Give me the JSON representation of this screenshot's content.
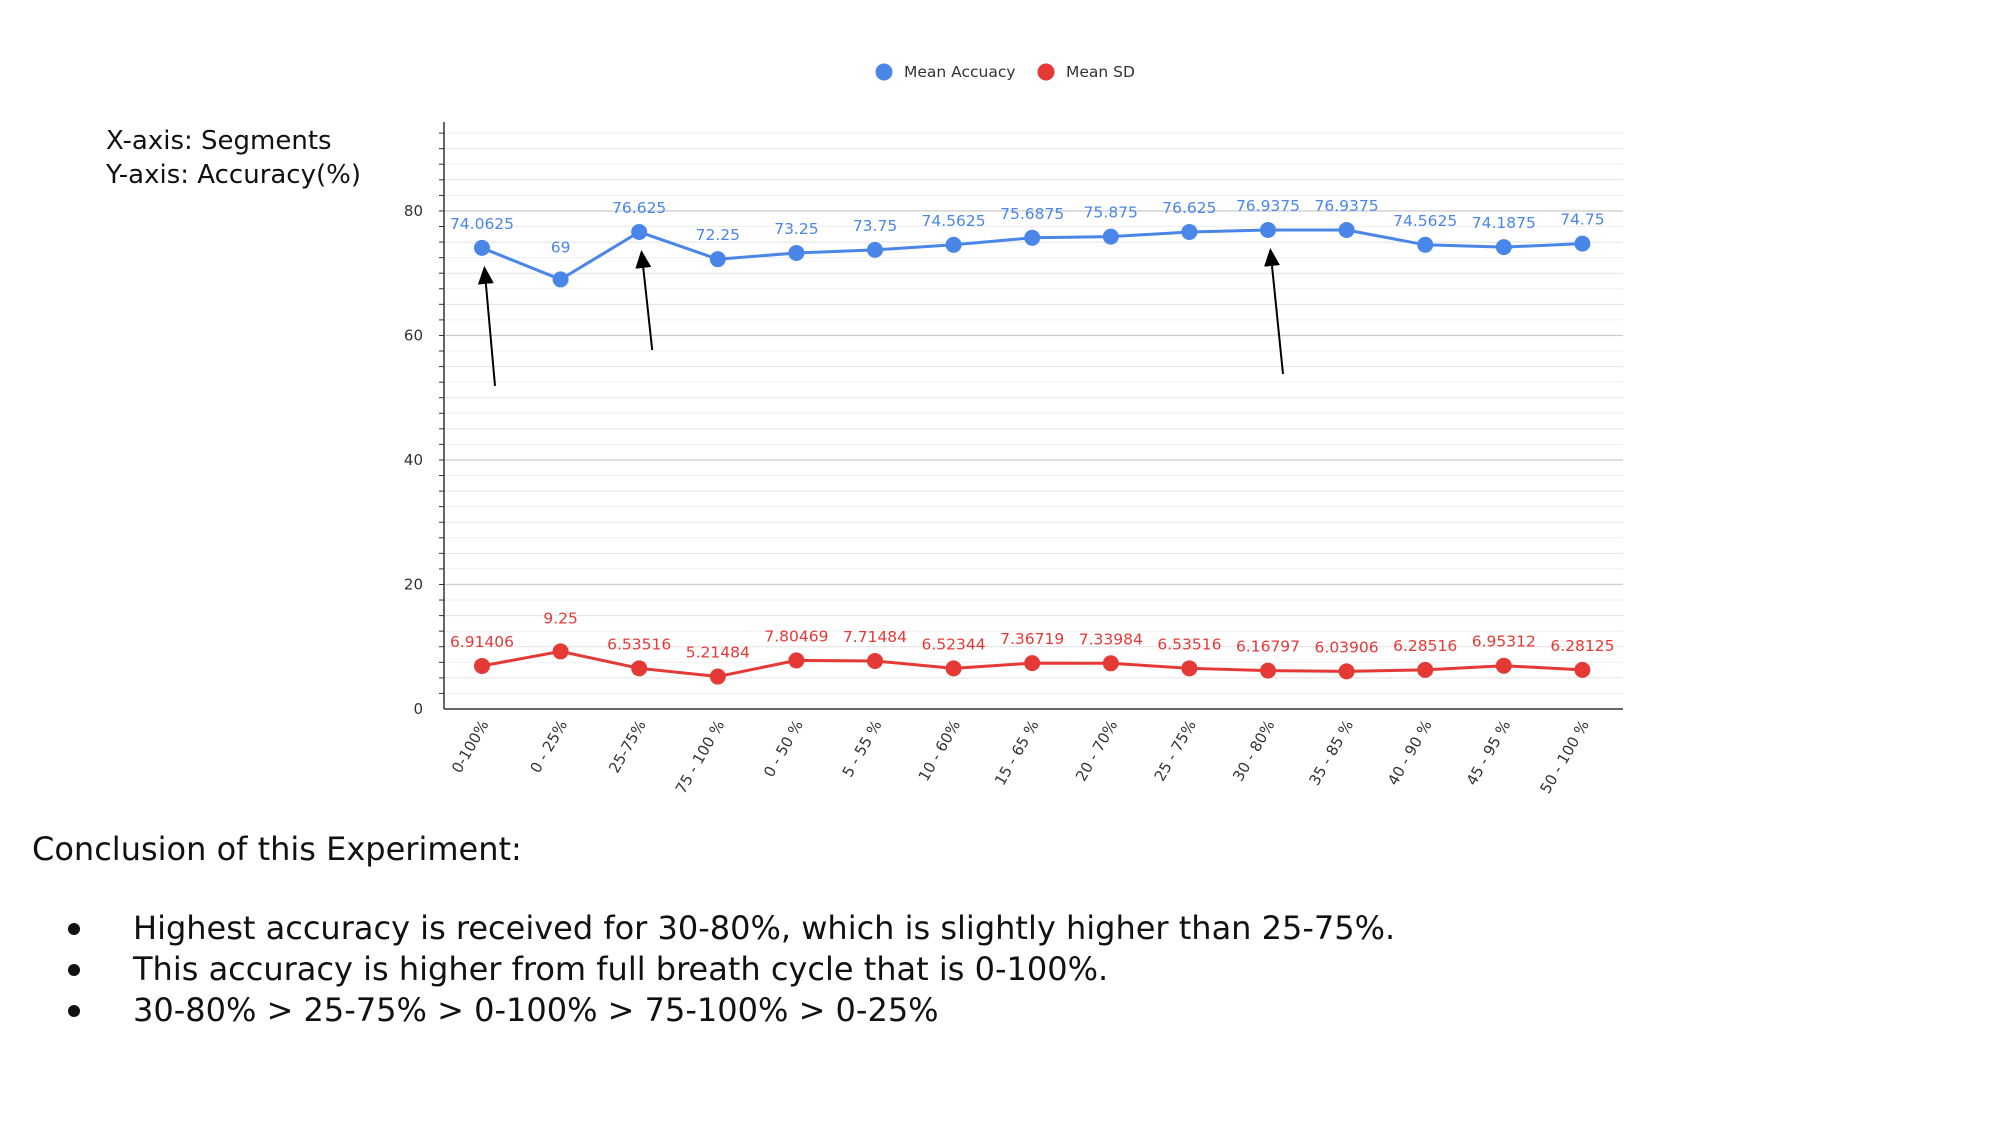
{
  "notes": {
    "x_axis": "X-axis: Segments",
    "y_axis": "Y-axis: Accuracy(%)"
  },
  "conclusion": {
    "title": "Conclusion of this Experiment:",
    "bullets": [
      "Highest accuracy is received for 30-80%, which is slightly higher than 25-75%.",
      "This accuracy is higher from full breath cycle that is 0-100%.",
      "30-80% > 25-75% > 0-100% > 75-100% > 0-25%"
    ]
  },
  "chart_data": {
    "type": "line",
    "title": "",
    "xlabel": "",
    "ylabel": "",
    "ylim": [
      0,
      93
    ],
    "yticks": [
      0,
      20,
      40,
      60,
      80
    ],
    "grid": true,
    "legend_position": "top-center",
    "categories": [
      "0-100%",
      "0 - 25%",
      "25-75%",
      "75 - 100 %",
      "0 - 50 %",
      "5 - 55 %",
      "10 - 60%",
      "15 - 65 %",
      "20 - 70%",
      "25 - 75%",
      "30 - 80%",
      "35 - 85 %",
      "40 - 90 %",
      "45 - 95 %",
      "50 - 100 %"
    ],
    "series": [
      {
        "name": "Mean Accuacy",
        "color": "#4a86e8",
        "values": [
          74.0625,
          69,
          76.625,
          72.25,
          73.25,
          73.75,
          74.5625,
          75.6875,
          75.875,
          76.625,
          76.9375,
          76.9375,
          74.5625,
          74.1875,
          74.75
        ],
        "labels": [
          "74.0625",
          "69",
          "76.625",
          "72.25",
          "73.25",
          "73.75",
          "74.5625",
          "75.6875",
          "75.875",
          "76.625",
          "76.9375",
          "76.9375",
          "74.5625",
          "74.1875",
          "74.75"
        ]
      },
      {
        "name": "Mean SD",
        "color": "#e53935",
        "values": [
          6.91406,
          9.25,
          6.53516,
          5.21484,
          7.80469,
          7.71484,
          6.52344,
          7.36719,
          7.33984,
          6.53516,
          6.16797,
          6.03906,
          6.28516,
          6.95312,
          6.28125
        ],
        "labels": [
          "6.91406",
          "9.25",
          "6.53516",
          "5.21484",
          "7.80469",
          "7.71484",
          "6.52344",
          "7.36719",
          "7.33984",
          "6.53516",
          "6.16797",
          "6.03906",
          "6.28516",
          "6.95312",
          "6.28125"
        ]
      }
    ],
    "annotations": [
      {
        "type": "arrow",
        "points_to": "0-100%"
      },
      {
        "type": "arrow",
        "points_to": "25-75%"
      },
      {
        "type": "arrow",
        "points_to": "30 - 80%"
      }
    ]
  }
}
